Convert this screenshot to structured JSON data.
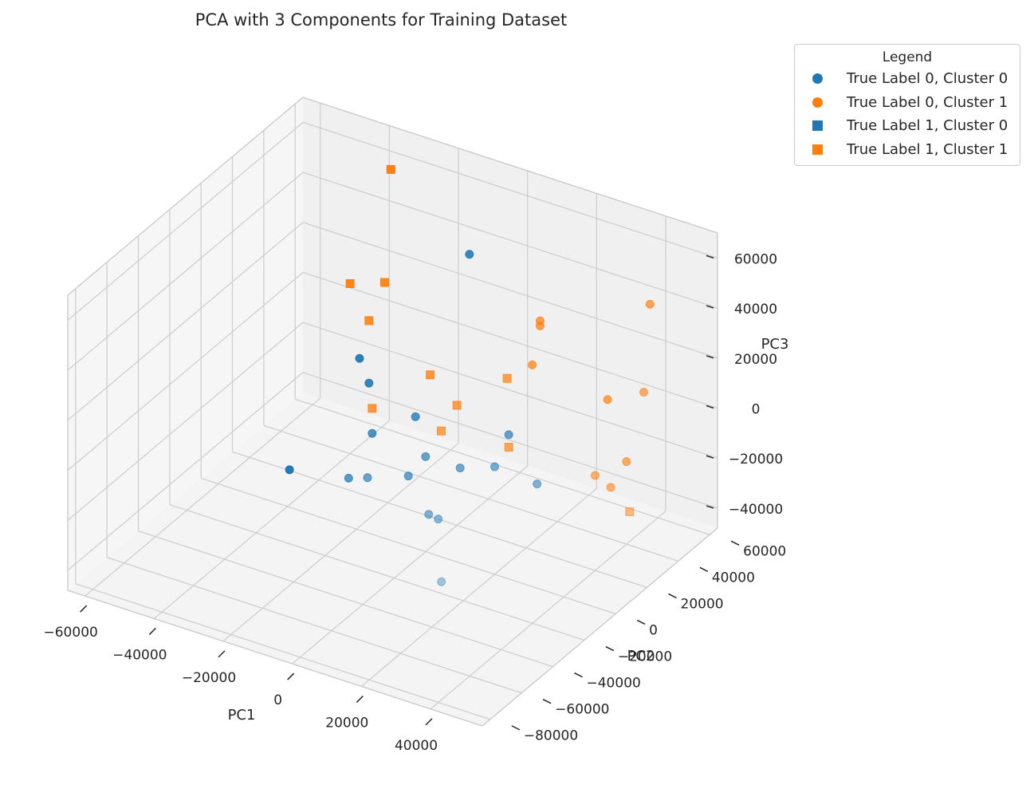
{
  "chart_data": {
    "type": "scatter",
    "projection": "3d",
    "title": "PCA with 3 Components for Training Dataset",
    "xlabel": "PC1",
    "ylabel": "PC2",
    "zlabel": "PC3",
    "xlim": [
      -65000,
      55000
    ],
    "ylim": [
      -85000,
      65000
    ],
    "zlim": [
      -48000,
      70000
    ],
    "x_ticks": [
      "−60000",
      "−40000",
      "−20000",
      "0",
      "20000",
      "40000"
    ],
    "y_ticks": [
      "−80000",
      "−60000",
      "−40000",
      "−20000",
      "0",
      "20000",
      "40000",
      "60000"
    ],
    "z_ticks": [
      "−40000",
      "−20000",
      "0",
      "20000",
      "40000",
      "60000"
    ],
    "grid": true,
    "legend": {
      "title": "Legend",
      "position": "outside-top-right",
      "entries": [
        {
          "label": "True Label 0, Cluster 0",
          "marker": "circle",
          "color": "#1f77b4"
        },
        {
          "label": "True Label 0, Cluster 1",
          "marker": "circle",
          "color": "#ff7f0e"
        },
        {
          "label": "True Label 1, Cluster 0",
          "marker": "square",
          "color": "#1f77b4"
        },
        {
          "label": "True Label 1, Cluster 1",
          "marker": "square",
          "color": "#ff7f0e"
        }
      ]
    },
    "series": [
      {
        "name": "True Label 0, Cluster 0",
        "marker": "circle",
        "color": "#1f77b4",
        "points": [
          [
            -53000,
            30000,
            -55000
          ],
          [
            -10000,
            50000,
            40000
          ],
          [
            -35000,
            35000,
            -5000
          ],
          [
            -30000,
            30000,
            -10000
          ],
          [
            -12000,
            20000,
            -10000
          ],
          [
            -20000,
            10000,
            -15000
          ],
          [
            -5000,
            0,
            -20000
          ],
          [
            -20000,
            -5000,
            -25000
          ],
          [
            -10000,
            -15000,
            -15000
          ],
          [
            0,
            0,
            -10000
          ],
          [
            15000,
            20000,
            -5000
          ],
          [
            10000,
            0,
            -10000
          ],
          [
            20000,
            0,
            -5000
          ],
          [
            10000,
            -20000,
            -18000
          ],
          [
            15000,
            -25000,
            -15000
          ],
          [
            25000,
            -45000,
            -25000
          ],
          [
            30000,
            5000,
            -10000
          ]
        ]
      },
      {
        "name": "True Label 0, Cluster 1",
        "marker": "circle",
        "color": "#ff7f0e",
        "points": [
          [
            15000,
            40000,
            30000
          ],
          [
            15000,
            40000,
            28000
          ],
          [
            15000,
            35000,
            15000
          ],
          [
            40000,
            55000,
            40000
          ],
          [
            45000,
            40000,
            15000
          ],
          [
            40000,
            40000,
            -15000
          ],
          [
            30000,
            50000,
            0
          ],
          [
            40000,
            20000,
            -10000
          ],
          [
            40000,
            30000,
            -20000
          ]
        ]
      },
      {
        "name": "True Label 1, Cluster 0",
        "marker": "square",
        "color": "#1f77b4",
        "points": []
      },
      {
        "name": "True Label 1, Cluster 1",
        "marker": "square",
        "color": "#ff7f0e",
        "points": [
          [
            -35000,
            55000,
            60000
          ],
          [
            -30000,
            40000,
            25000
          ],
          [
            -40000,
            40000,
            20000
          ],
          [
            -30000,
            30000,
            15000
          ],
          [
            -10000,
            25000,
            5000
          ],
          [
            -20000,
            10000,
            -5000
          ],
          [
            0,
            20000,
            0
          ],
          [
            0,
            10000,
            -5000
          ],
          [
            10000,
            30000,
            10000
          ],
          [
            15000,
            20000,
            -10000
          ],
          [
            50000,
            20000,
            -20000
          ]
        ]
      }
    ]
  }
}
